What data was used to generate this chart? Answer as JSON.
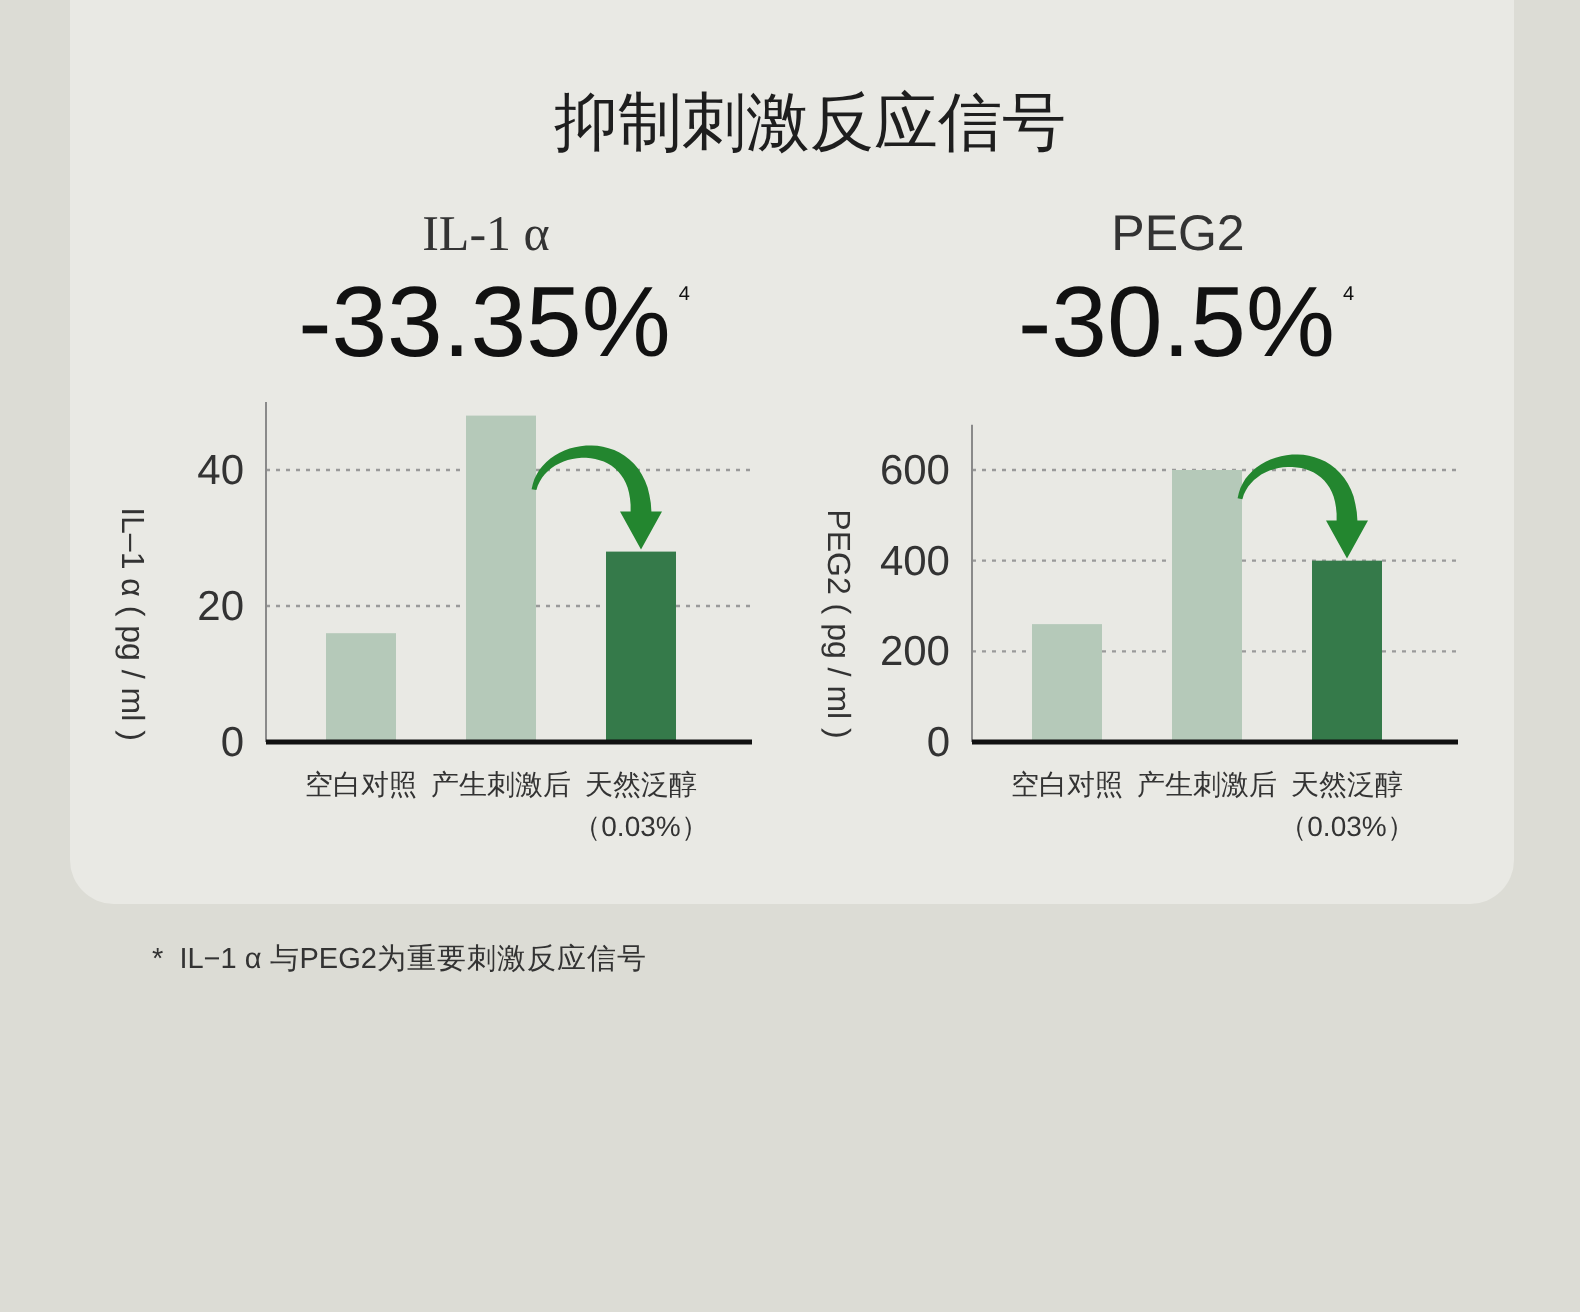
{
  "chart_data": [
    {
      "type": "other",
      "title": "抑制刺激反应信号"
    },
    {
      "type": "bar",
      "title": "IL-1 α",
      "subtitle": "-33.35%$^{4}$",
      "ylabel": "IL–1 α ( pg / ml )",
      "categories": [
        "空白对照",
        "产生刺激后",
        "天然泛醇（0.03%）"
      ],
      "values": [
        16,
        48,
        28
      ],
      "colors": [
        "#b5c9b9",
        "#b5c9b9",
        "#357a4a"
      ],
      "ylim": [
        0,
        50
      ],
      "yticks": [
        0,
        20,
        40
      ],
      "grid": "y"
    },
    {
      "type": "bar",
      "title": "PEG2",
      "subtitle": "-30.5%$^{4}$",
      "ylabel": "PEG2 ( pg / ml )",
      "categories": [
        "空白对照",
        "产生刺激后",
        "天然泛醇（0.03%）"
      ],
      "values": [
        260,
        600,
        400
      ],
      "colors": [
        "#b5c9b9",
        "#b5c9b9",
        "#357a4a"
      ],
      "ylim": [
        0,
        700
      ],
      "yticks": [
        0,
        200,
        400,
        600
      ],
      "grid": "y"
    },
    {
      "type": "other",
      "annotations": [
        "*  IL−1 α 与PEG2为重要刺激反应信号"
      ]
    }
  ]
}
